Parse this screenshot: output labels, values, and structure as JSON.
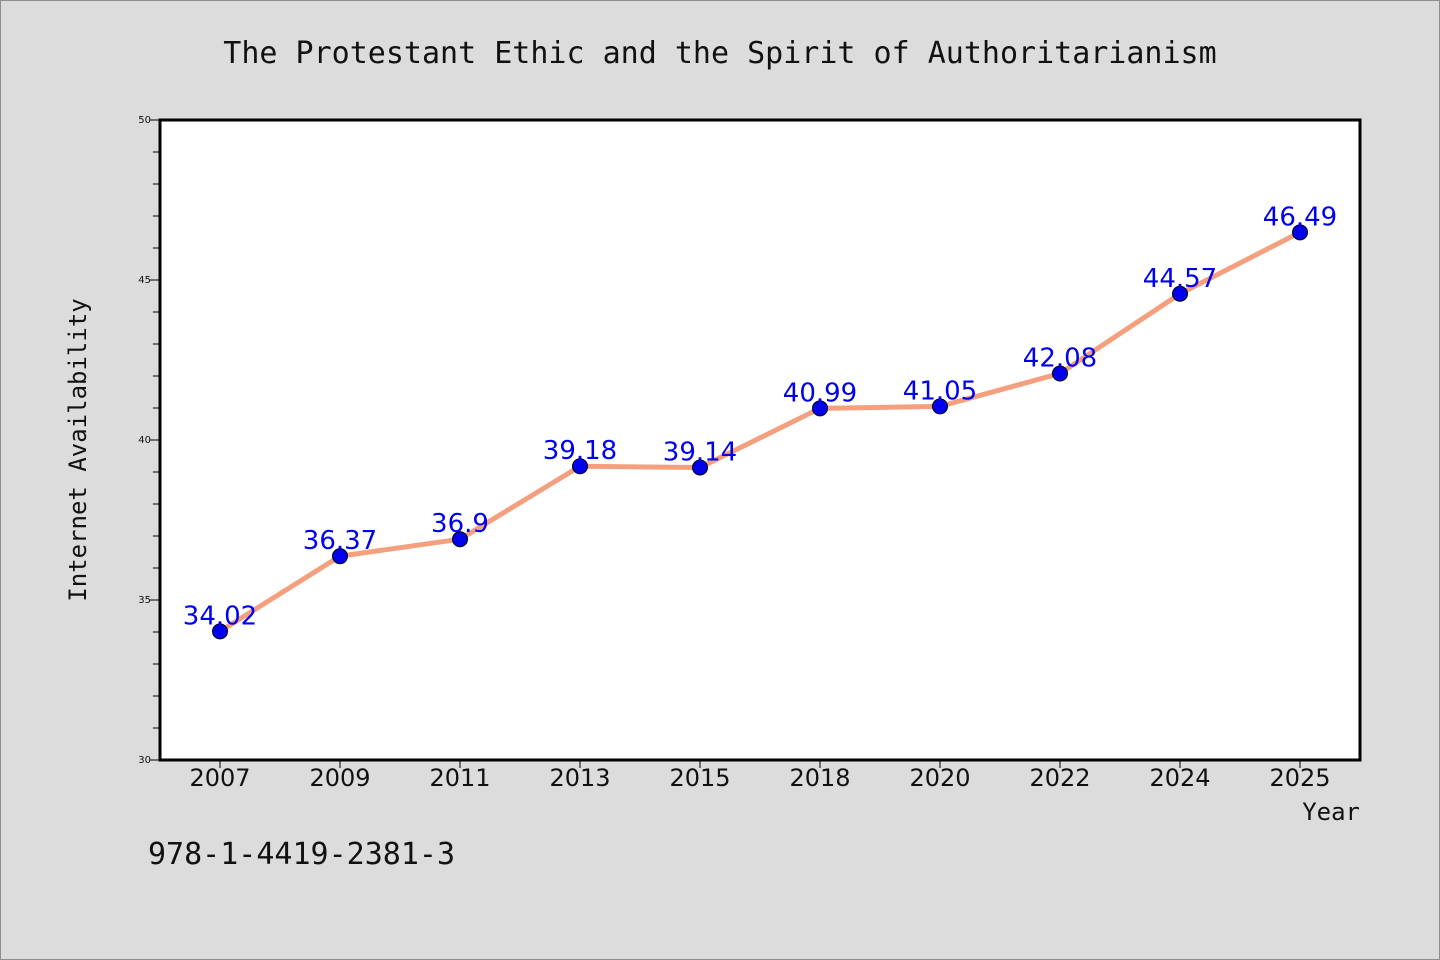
{
  "chart_data": {
    "type": "line",
    "title": "The Protestant Ethic and the Spirit of Authoritarianism",
    "xlabel": "Year",
    "ylabel": "Internet Availability",
    "categories": [
      "2007",
      "2009",
      "2011",
      "2013",
      "2015",
      "2018",
      "2020",
      "2022",
      "2024",
      "2025"
    ],
    "series": [
      {
        "values": [
          34.02,
          36.37,
          36.9,
          39.18,
          39.14,
          40.99,
          41.05,
          42.08,
          44.57,
          46.49
        ],
        "labels": [
          "34.02",
          "36.37",
          "36.9",
          "39.18",
          "39.14",
          "40.99",
          "41.05",
          "42.08",
          "44.57",
          "46.49"
        ]
      }
    ],
    "ylim": [
      30,
      50
    ],
    "yticks": [
      "30",
      "35",
      "40",
      "45",
      "50"
    ],
    "grid": false,
    "colors": {
      "line": "#f4a07e",
      "marker": "#0000ee",
      "label": "#0000ee",
      "background": "#dcdcdc",
      "plot_background": "#ffffff"
    }
  },
  "footnote": "978-1-4419-2381-3"
}
